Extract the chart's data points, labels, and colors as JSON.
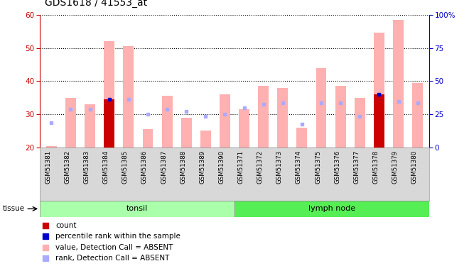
{
  "title": "GDS1618 / 41553_at",
  "samples": [
    "GSM51381",
    "GSM51382",
    "GSM51383",
    "GSM51384",
    "GSM51385",
    "GSM51386",
    "GSM51387",
    "GSM51388",
    "GSM51389",
    "GSM51390",
    "GSM51371",
    "GSM51372",
    "GSM51373",
    "GSM51374",
    "GSM51375",
    "GSM51376",
    "GSM51377",
    "GSM51378",
    "GSM51379",
    "GSM51380"
  ],
  "tissue_groups": [
    {
      "label": "tonsil",
      "start": 0,
      "end": 10,
      "color": "#aaffaa"
    },
    {
      "label": "lymph node",
      "start": 10,
      "end": 20,
      "color": "#55ee55"
    }
  ],
  "ylim_left": [
    20,
    60
  ],
  "ylim_right": [
    0,
    100
  ],
  "yticks_left": [
    20,
    30,
    40,
    50,
    60
  ],
  "yticks_right": [
    0,
    25,
    50,
    75,
    100
  ],
  "bar_values": [
    20.5,
    35.0,
    33.0,
    52.0,
    50.5,
    25.5,
    35.5,
    29.0,
    25.2,
    36.0,
    31.5,
    38.5,
    38.0,
    26.0,
    44.0,
    38.5,
    35.0,
    54.5,
    58.5,
    39.5
  ],
  "rank_values": [
    27.5,
    31.5,
    31.5,
    34.5,
    34.5,
    30.0,
    31.5,
    31.0,
    29.5,
    30.0,
    32.0,
    33.0,
    33.5,
    27.0,
    33.5,
    33.5,
    29.5,
    36.0,
    34.0,
    33.5
  ],
  "count_bars": [
    false,
    false,
    false,
    true,
    false,
    false,
    false,
    false,
    false,
    false,
    false,
    false,
    false,
    false,
    false,
    false,
    false,
    true,
    false,
    false
  ],
  "count_values": [
    20.0,
    20.0,
    20.0,
    34.5,
    20.0,
    20.0,
    20.0,
    20.0,
    20.0,
    20.0,
    20.0,
    20.0,
    20.0,
    20.0,
    20.0,
    20.0,
    20.0,
    36.0,
    20.0,
    20.0
  ],
  "bar_color_absent": "#ffb0b0",
  "bar_color_count": "#cc0000",
  "rank_color_absent": "#aaaaff",
  "rank_color_count": "#0000cc",
  "background_color": "#ffffff",
  "left_axis_color": "#cc0000",
  "right_axis_color": "#0000cc"
}
